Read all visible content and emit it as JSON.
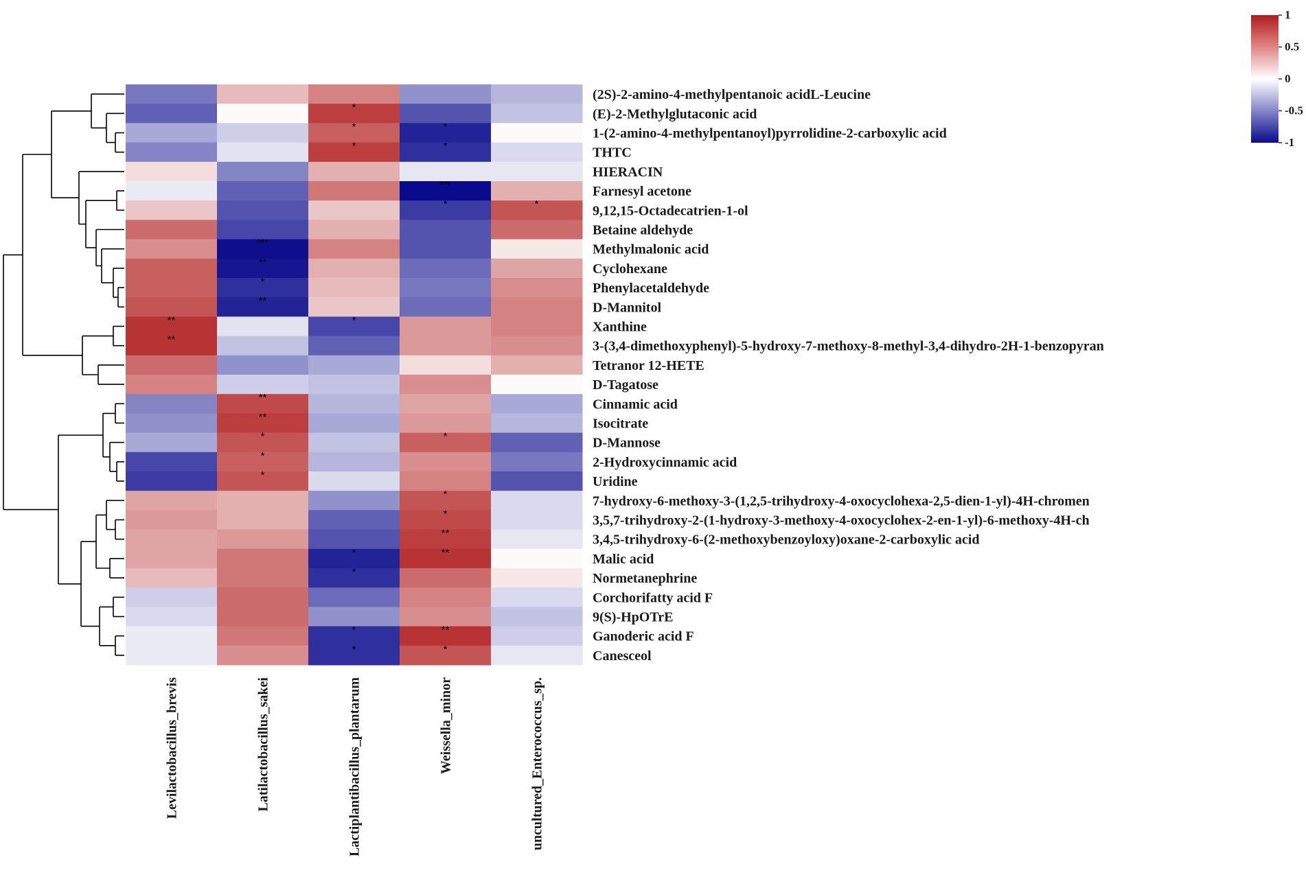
{
  "chart_data": {
    "type": "heatmap",
    "title": "",
    "columns": [
      "Levilactobacillus_brevis",
      "Latilactobacillus_sakei",
      "Lactiplantibacillus_plantarum",
      "Weissella_minor",
      "uncultured_Enterococcus_sp."
    ],
    "rows": [
      "(2S)-2-amino-4-methylpentanoic acidL-Leucine",
      "(E)-2-Methylglutaconic acid",
      "1-(2-amino-4-methylpentanoyl)pyrrolidine-2-carboxylic acid",
      "THTC",
      "HIERACIN",
      "Farnesyl acetone",
      "9,12,15-Octadecatrien-1-ol",
      "Betaine aldehyde",
      "Methylmalonic acid",
      "Cyclohexane",
      "Phenylacetaldehyde",
      "D-Mannitol",
      "Xanthine",
      "3-(3,4-dimethoxyphenyl)-5-hydroxy-7-methoxy-8-methyl-3,4-dihydro-2H-1-benzopyran",
      "Tetranor 12-HETE",
      "D-Tagatose",
      "Cinnamic acid",
      "Isocitrate",
      "D-Mannose",
      "2-Hydroxycinnamic acid",
      "Uridine",
      "7-hydroxy-6-methoxy-3-(1,2,5-trihydroxy-4-oxocyclohexa-2,5-dien-1-yl)-4H-chromen",
      "3,5,7-trihydroxy-2-(1-hydroxy-3-methoxy-4-oxocyclohex-2-en-1-yl)-6-methoxy-4H-ch",
      "3,4,5-trihydroxy-6-(2-methoxybenzoyloxy)oxane-2-carboxylic acid",
      "Malic acid",
      "Normetanephrine",
      "Corchorifatty acid F",
      "9(S)-HpOTrE",
      "Ganoderic acid F",
      "Canesceol"
    ],
    "values": [
      [
        -0.55,
        0.3,
        0.55,
        -0.45,
        -0.3
      ],
      [
        -0.65,
        0.02,
        0.85,
        -0.7,
        -0.25
      ],
      [
        -0.35,
        -0.2,
        0.7,
        -0.9,
        0.02
      ],
      [
        -0.5,
        -0.12,
        0.85,
        -0.85,
        -0.15
      ],
      [
        0.15,
        -0.5,
        0.35,
        -0.1,
        -0.1
      ],
      [
        -0.08,
        -0.65,
        0.6,
        -1.0,
        0.35
      ],
      [
        0.25,
        -0.7,
        0.25,
        -0.8,
        0.75
      ],
      [
        0.65,
        -0.75,
        0.35,
        -0.7,
        0.65
      ],
      [
        0.5,
        -0.98,
        0.55,
        -0.7,
        0.1
      ],
      [
        0.7,
        -0.95,
        0.35,
        -0.6,
        0.4
      ],
      [
        0.7,
        -0.85,
        0.3,
        -0.55,
        0.5
      ],
      [
        0.75,
        -0.9,
        0.25,
        -0.6,
        0.55
      ],
      [
        0.9,
        -0.12,
        -0.75,
        0.45,
        0.55
      ],
      [
        0.9,
        -0.25,
        -0.65,
        0.45,
        0.5
      ],
      [
        0.65,
        -0.45,
        -0.35,
        0.15,
        0.35
      ],
      [
        0.55,
        -0.2,
        -0.25,
        0.5,
        0.02
      ],
      [
        -0.5,
        0.8,
        -0.3,
        0.4,
        -0.35
      ],
      [
        -0.45,
        0.85,
        -0.35,
        0.45,
        -0.3
      ],
      [
        -0.35,
        0.75,
        -0.25,
        0.7,
        -0.65
      ],
      [
        -0.75,
        0.7,
        -0.3,
        0.5,
        -0.55
      ],
      [
        -0.8,
        0.75,
        -0.15,
        0.55,
        -0.7
      ],
      [
        0.4,
        0.35,
        -0.45,
        0.75,
        -0.15
      ],
      [
        0.45,
        0.35,
        -0.65,
        0.8,
        -0.15
      ],
      [
        0.4,
        0.45,
        -0.7,
        0.85,
        -0.1
      ],
      [
        0.4,
        0.6,
        -0.9,
        0.9,
        0.02
      ],
      [
        0.3,
        0.6,
        -0.85,
        0.65,
        0.1
      ],
      [
        -0.2,
        0.65,
        -0.6,
        0.55,
        -0.15
      ],
      [
        -0.15,
        0.65,
        -0.45,
        0.5,
        -0.25
      ],
      [
        -0.08,
        0.6,
        -0.85,
        0.9,
        -0.2
      ],
      [
        -0.08,
        0.5,
        -0.85,
        0.75,
        -0.1
      ]
    ],
    "significance": [
      [
        "",
        "",
        "",
        "",
        ""
      ],
      [
        "",
        "",
        "*",
        "",
        ""
      ],
      [
        "",
        "",
        "*",
        "*",
        ""
      ],
      [
        "",
        "",
        "*",
        "*",
        ""
      ],
      [
        "",
        "",
        "",
        "",
        ""
      ],
      [
        "",
        "",
        "",
        "***",
        ""
      ],
      [
        "",
        "",
        "",
        "*",
        "*"
      ],
      [
        "",
        "",
        "",
        "",
        ""
      ],
      [
        "",
        "***",
        "",
        "",
        ""
      ],
      [
        "",
        "**",
        "",
        "",
        ""
      ],
      [
        "",
        "*",
        "",
        "",
        ""
      ],
      [
        "",
        "**",
        "",
        "",
        ""
      ],
      [
        "**",
        "",
        "*",
        "",
        ""
      ],
      [
        "**",
        "",
        "",
        "",
        ""
      ],
      [
        "",
        "",
        "",
        "",
        ""
      ],
      [
        "",
        "",
        "",
        "",
        ""
      ],
      [
        "",
        "**",
        "",
        "",
        ""
      ],
      [
        "",
        "**",
        "",
        "",
        ""
      ],
      [
        "",
        "*",
        "",
        "*",
        ""
      ],
      [
        "",
        "*",
        "",
        "",
        ""
      ],
      [
        "",
        "*",
        "",
        "",
        ""
      ],
      [
        "",
        "",
        "",
        "*",
        ""
      ],
      [
        "",
        "",
        "",
        "*",
        ""
      ],
      [
        "",
        "",
        "",
        "**",
        ""
      ],
      [
        "",
        "",
        "*",
        "**",
        ""
      ],
      [
        "",
        "",
        "*",
        "",
        ""
      ],
      [
        "",
        "",
        "",
        "",
        ""
      ],
      [
        "",
        "",
        "",
        "",
        ""
      ],
      [
        "",
        "",
        "*",
        "**",
        ""
      ],
      [
        "",
        "",
        "*",
        "*",
        ""
      ]
    ],
    "color_scale": {
      "min": -1,
      "max": 1,
      "low_color": "#0a0a8c",
      "mid_color": "#ffffff",
      "high_color": "#b01c1c",
      "ticks": [
        "1",
        "0.5",
        "0",
        "-0.5",
        "-1"
      ],
      "tick_values": [
        1,
        0.5,
        0,
        -0.5,
        -1
      ]
    },
    "dendrogram": "rows",
    "legend_position": "top-right"
  }
}
